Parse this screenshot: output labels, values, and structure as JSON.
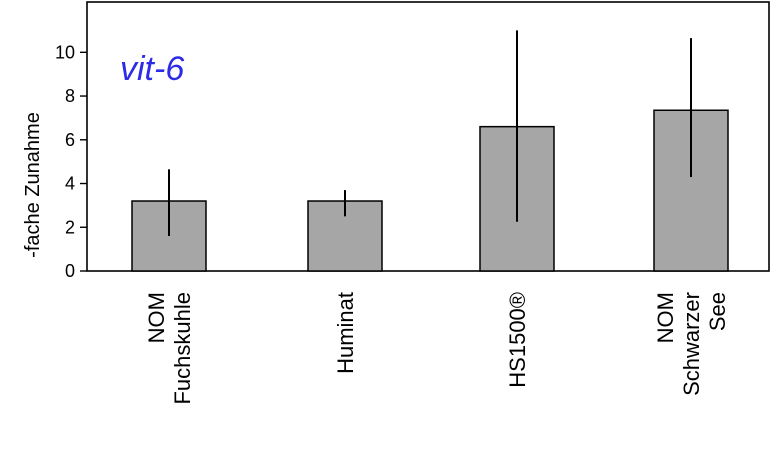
{
  "chart_data": {
    "type": "bar",
    "categories": [
      [
        "NOM",
        "Fuchskuhle"
      ],
      [
        "Huminat"
      ],
      [
        "HS1500®"
      ],
      [
        "NOM",
        "Schwarzer",
        "See"
      ]
    ],
    "values": [
      3.2,
      3.2,
      6.6,
      7.35
    ],
    "error_bars": [
      {
        "low": 1.6,
        "high": 4.65
      },
      {
        "low": 2.5,
        "high": 3.7
      },
      {
        "low": 2.25,
        "high": 11.0
      },
      {
        "low": 4.3,
        "high": 10.65
      }
    ],
    "title": "",
    "annotation": "vit-6",
    "xlabel": "",
    "ylabel": "-fache Zunahme",
    "ylim": [
      0,
      12.3
    ],
    "yticks": [
      0,
      2,
      4,
      6,
      8,
      10
    ],
    "grid": false,
    "legend": "none",
    "colors": {
      "bar_fill": "#a6a6a6",
      "bar_stroke": "#000000",
      "error_bar": "#000000",
      "annotation": "#2b2be8",
      "axis": "#000000"
    }
  }
}
